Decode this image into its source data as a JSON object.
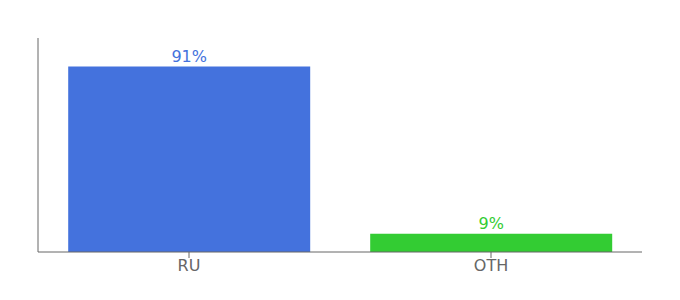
{
  "chart_data": {
    "type": "bar",
    "categories": [
      "RU",
      "OTH"
    ],
    "values": [
      91,
      9
    ],
    "value_labels": [
      "91%",
      "9%"
    ],
    "data_labels": true,
    "colors": [
      "#4472dd",
      "#33cc33"
    ],
    "ylim": [
      0,
      105
    ],
    "tick_labels": "x",
    "grid": false
  }
}
